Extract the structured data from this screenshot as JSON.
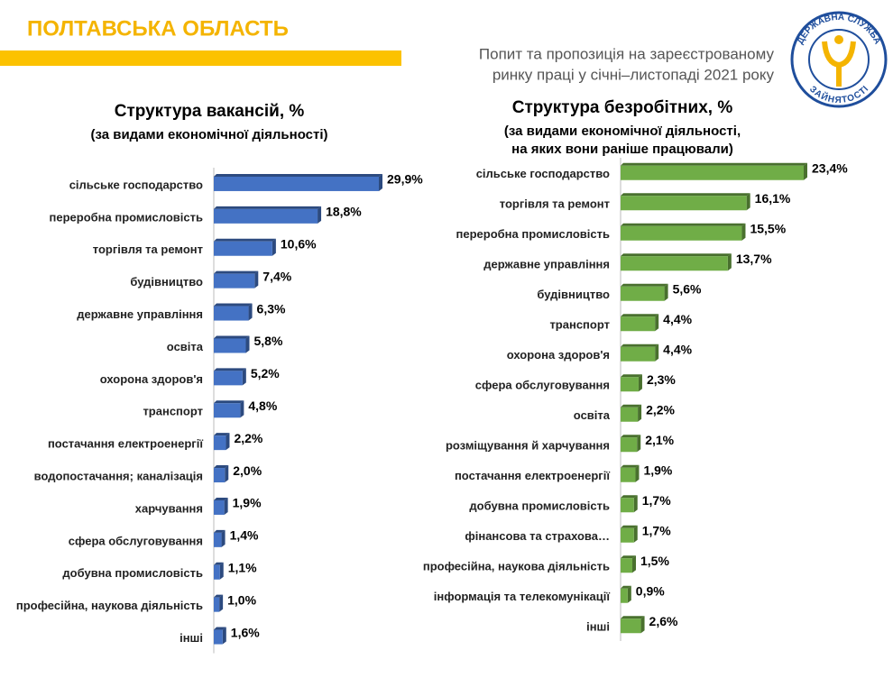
{
  "header": {
    "title": "ПОЛТАВСЬКА ОБЛАСТЬ",
    "subtitle": [
      "Попит та пропозиція на зареєстрованому",
      "ринку праці у січні–листопаді 2021 року"
    ],
    "logo": [
      "ДЕРЖАВНА СЛУЖБА",
      "ЗАЙНЯТОСТІ"
    ]
  },
  "chart_data": [
    {
      "type": "bar",
      "orientation": "horizontal",
      "title": "Структура вакансій, %",
      "subtitle": [
        "(за видами економічної діяльності)"
      ],
      "color": "#4472c4",
      "categories": [
        "сільське господарство",
        "переробна промисловість",
        "торгівля та ремонт",
        "будівництво",
        "державне управління",
        "освіта",
        "охорона здоров'я",
        "транспорт",
        "постачання електроенергії",
        "водопостачання; каналізація",
        "харчування",
        "сфера обслуговування",
        "добувна промисловість",
        "професійна, наукова  діяльність",
        "інші"
      ],
      "values": [
        29.9,
        18.8,
        10.6,
        7.4,
        6.3,
        5.8,
        5.2,
        4.8,
        2.2,
        2.0,
        1.9,
        1.4,
        1.1,
        1.0,
        1.6
      ],
      "value_labels": [
        "29,9%",
        "18,8%",
        "10,6%",
        "7,4%",
        "6,3%",
        "5,8%",
        "5,2%",
        "4,8%",
        "2,2%",
        "2,0%",
        "1,9%",
        "1,4%",
        "1,1%",
        "1,0%",
        "1,6%"
      ]
    },
    {
      "type": "bar",
      "orientation": "horizontal",
      "title": "Структура безробітних, %",
      "subtitle": [
        "(за видами економічної діяльності,",
        "на яких вони раніше працювали)"
      ],
      "color": "#70ad47",
      "categories": [
        "сільське господарство",
        "торгівля та ремонт",
        "переробна промисловість",
        "державне управління",
        "будівництво",
        "транспорт",
        "охорона здоров'я",
        "сфера обслуговування",
        "освіта",
        "розміщування й  харчування",
        "постачання електроенергії",
        "добувна промисловість",
        "фінансова та страхова…",
        "професійна, наукова діяльність",
        "інформація та телекомунікації",
        "інші"
      ],
      "values": [
        23.4,
        16.1,
        15.5,
        13.7,
        5.6,
        4.4,
        4.4,
        2.3,
        2.2,
        2.1,
        1.9,
        1.7,
        1.7,
        1.5,
        0.9,
        2.6
      ],
      "value_labels": [
        "23,4%",
        "16,1%",
        "15,5%",
        "13,7%",
        "5,6%",
        "4,4%",
        "4,4%",
        "2,3%",
        "2,2%",
        "2,1%",
        "1,9%",
        "1,7%",
        "1,7%",
        "1,5%",
        "0,9%",
        "2,6%"
      ]
    }
  ]
}
